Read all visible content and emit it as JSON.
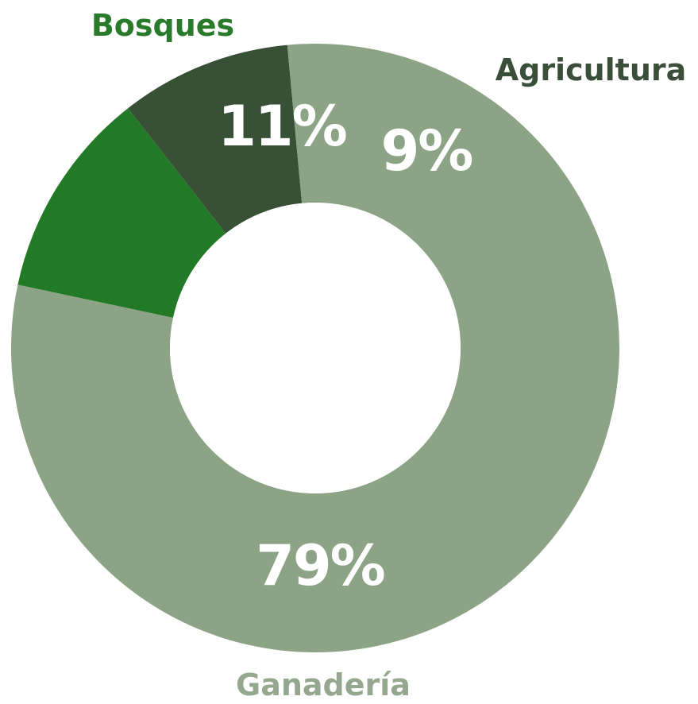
{
  "chart_data": {
    "type": "pie",
    "variant": "donut",
    "slices": [
      {
        "label": "Bosques",
        "value": 11,
        "value_label": "11%",
        "color": "#237a26"
      },
      {
        "label": "Agricultura",
        "value": 9,
        "value_label": "9%",
        "color": "#375036"
      },
      {
        "label": "Ganadería",
        "value": 79,
        "value_label": "79%",
        "color": "#8da386"
      }
    ],
    "label_colors": {
      "Bosques": "#2a7a2c",
      "Agricultura": "#3a4e3a",
      "Ganadería": "#95a88f"
    },
    "background": "#ffffff",
    "legend": "none"
  }
}
